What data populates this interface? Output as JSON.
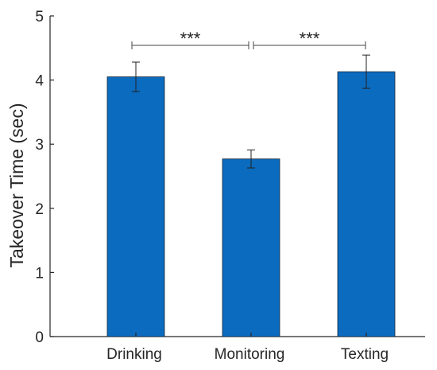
{
  "chart_data": {
    "type": "bar",
    "categories": [
      "Drinking",
      "Monitoring",
      "Texting"
    ],
    "values": [
      4.05,
      2.77,
      4.13
    ],
    "error": [
      0.23,
      0.14,
      0.26
    ],
    "ylabel": "Takeover Time (sec)",
    "xlabel": "",
    "ylim": [
      0,
      5
    ],
    "yticks": [
      0,
      1,
      2,
      3,
      4,
      5
    ],
    "bar_color": "#0b6bbf",
    "grid": false,
    "significance": [
      {
        "from": "Drinking",
        "to": "Monitoring",
        "label": "***"
      },
      {
        "from": "Monitoring",
        "to": "Texting",
        "label": "***"
      }
    ]
  }
}
